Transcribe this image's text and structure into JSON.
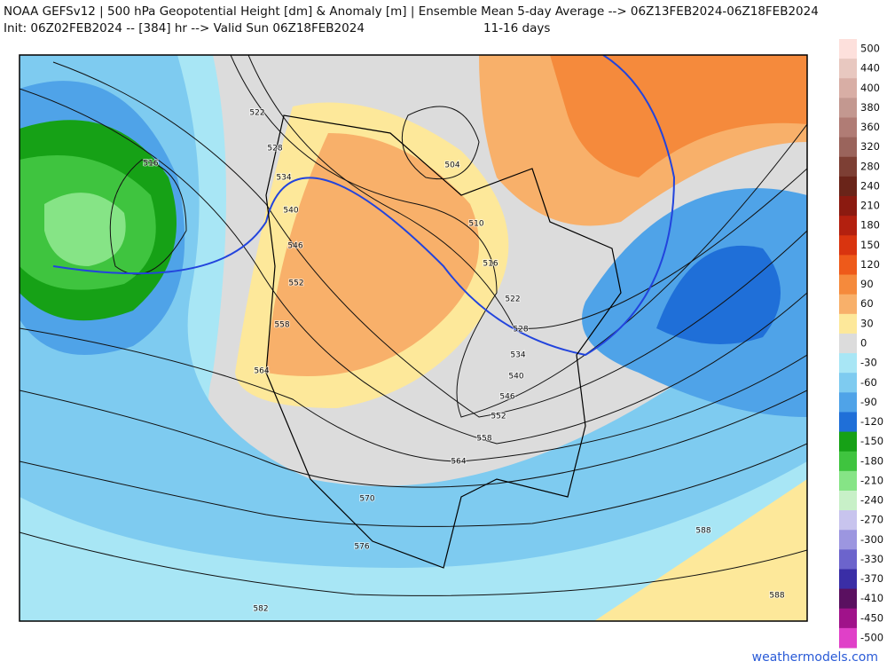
{
  "header": {
    "title": "NOAA GEFSv12 | 500 hPa Geopotential Height [dm] & Anomaly [m] | Ensemble Mean 5-day Average --> 06Z13FEB2024-06Z18FEB2024",
    "init": "Init: 06Z02FEB2024 -- [384] hr --> Valid Sun 06Z18FEB2024",
    "range": "11-16 days"
  },
  "contour_labels": [
    "522",
    "528",
    "534",
    "540",
    "546",
    "552",
    "558",
    "564",
    "516",
    "504",
    "510",
    "516",
    "522",
    "528",
    "534",
    "540",
    "546",
    "552",
    "558",
    "564",
    "570",
    "576",
    "582",
    "588",
    "588"
  ],
  "colorbar": {
    "labels": [
      "500",
      "440",
      "400",
      "380",
      "360",
      "320",
      "280",
      "240",
      "210",
      "180",
      "150",
      "120",
      "90",
      "60",
      "30",
      "0",
      "-30",
      "-60",
      "-90",
      "-120",
      "-150",
      "-180",
      "-210",
      "-240",
      "-270",
      "-300",
      "-330",
      "-370",
      "-410",
      "-450",
      "-500"
    ],
    "colors": [
      "#fde0dc",
      "#e8c8c0",
      "#d8aea5",
      "#c39890",
      "#b07c75",
      "#9a645c",
      "#7d3f34",
      "#6a2419",
      "#8b1a10",
      "#b3200f",
      "#d9340f",
      "#ee5a1a",
      "#f58a3c",
      "#f8b06a",
      "#fde89a",
      "#dcdcdc",
      "#a8e6f5",
      "#7ecbf0",
      "#4fa3e8",
      "#1f6fd8",
      "#16a116",
      "#3fc43f",
      "#86e486",
      "#c8f0c8",
      "#c8c4ee",
      "#9c96e0",
      "#6c64cc",
      "#3a2ea6",
      "#5a1060",
      "#a0128a",
      "#e040c8"
    ]
  },
  "credit": "weathermodels.com"
}
